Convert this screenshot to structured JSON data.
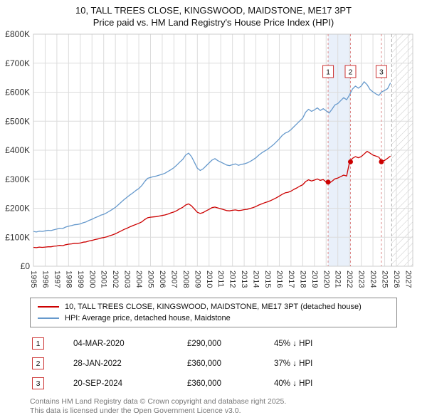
{
  "chart_data": {
    "type": "line",
    "title": "10, TALL TREES CLOSE, KINGSWOOD, MAIDSTONE, ME17 3PT",
    "subtitle": "Price paid vs. HM Land Registry's House Price Index (HPI)",
    "ylim": [
      0,
      800
    ],
    "y_unit": "K GBP",
    "y_ticks": [
      "£0",
      "£100K",
      "£200K",
      "£300K",
      "£400K",
      "£500K",
      "£600K",
      "£700K",
      "£800K"
    ],
    "x_axis": {
      "min": 1995,
      "max": 2027.4
    },
    "x_ticks": [
      1995,
      1996,
      1997,
      1998,
      1999,
      2000,
      2001,
      2002,
      2003,
      2004,
      2005,
      2006,
      2007,
      2008,
      2009,
      2010,
      2011,
      2012,
      2013,
      2014,
      2015,
      2016,
      2017,
      2018,
      2019,
      2020,
      2021,
      2022,
      2023,
      2024,
      2025,
      2026,
      2027
    ],
    "grid": true,
    "legend_position": "bottom",
    "series": [
      {
        "name": "10, TALL TREES CLOSE, KINGSWOOD, MAIDSTONE, ME17 3PT (detached house)",
        "color": "#cc0000",
        "x0": 1995,
        "dx": 0.25,
        "values": [
          65,
          64,
          66,
          65,
          66,
          67,
          67,
          69,
          70,
          72,
          71,
          74,
          76,
          77,
          79,
          79,
          80,
          83,
          84,
          87,
          89,
          92,
          94,
          97,
          99,
          101,
          105,
          108,
          112,
          117,
          122,
          127,
          131,
          136,
          140,
          144,
          148,
          153,
          161,
          167,
          169,
          170,
          171,
          173,
          175,
          177,
          180,
          184,
          187,
          192,
          198,
          203,
          211,
          215,
          208,
          197,
          186,
          182,
          185,
          191,
          196,
          202,
          204,
          201,
          198,
          195,
          192,
          191,
          193,
          194,
          192,
          193,
          195,
          196,
          199,
          202,
          206,
          211,
          215,
          219,
          222,
          226,
          231,
          236,
          242,
          248,
          253,
          255,
          259,
          265,
          270,
          276,
          281,
          292,
          298,
          294,
          297,
          301,
          296,
          299,
          290,
          286,
          293,
          301,
          304,
          309,
          314,
          311,
          360,
          372,
          378,
          374,
          378,
          387,
          396,
          390,
          383,
          380,
          376,
          362,
          365,
          372,
          380
        ]
      },
      {
        "name": "HPI: Average price, detached house, Maidstone",
        "color": "#6699cc",
        "x0": 1995,
        "dx": 0.25,
        "values": [
          120,
          118,
          121,
          120,
          122,
          124,
          123,
          126,
          128,
          131,
          130,
          135,
          138,
          140,
          143,
          144,
          146,
          150,
          153,
          158,
          162,
          167,
          171,
          176,
          179,
          184,
          190,
          196,
          203,
          212,
          221,
          230,
          238,
          246,
          253,
          261,
          268,
          278,
          292,
          303,
          306,
          309,
          311,
          314,
          317,
          321,
          327,
          333,
          340,
          349,
          359,
          368,
          383,
          390,
          378,
          358,
          338,
          330,
          336,
          346,
          356,
          366,
          371,
          364,
          359,
          354,
          349,
          347,
          350,
          353,
          348,
          351,
          353,
          356,
          361,
          367,
          374,
          383,
          391,
          397,
          403,
          411,
          419,
          429,
          439,
          451,
          459,
          463,
          471,
          481,
          491,
          501,
          511,
          531,
          541,
          534,
          539,
          546,
          537,
          543,
          536,
          528,
          541,
          556,
          561,
          571,
          581,
          574,
          591,
          611,
          621,
          614,
          621,
          636,
          626,
          609,
          601,
          594,
          589,
          601,
          606,
          612,
          632
        ]
      }
    ],
    "sales": [
      {
        "n": "1",
        "x": 2020.17,
        "y": 290,
        "date": "04-MAR-2020",
        "price": "£290,000",
        "vs_hpi": "45% ↓ HPI"
      },
      {
        "n": "2",
        "x": 2022.08,
        "y": 360,
        "date": "28-JAN-2022",
        "price": "£360,000",
        "vs_hpi": "37% ↓ HPI"
      },
      {
        "n": "3",
        "x": 2024.72,
        "y": 360,
        "date": "20-SEP-2024",
        "price": "£360,000",
        "vs_hpi": "40% ↓ HPI"
      }
    ],
    "shade": {
      "from": 2020.17,
      "to": 2022.08
    },
    "future_from": 2025.6,
    "marker_label_y": 670,
    "colors": {
      "grid": "#dcdcdc",
      "border": "#cccccc",
      "sale_line": "#dd8888",
      "shade": "#e9f0fa",
      "hatch": "#c8c8c8",
      "marker_border": "#cc3333",
      "marker_text": "#111111",
      "tick_text": "#333333"
    }
  },
  "footer": {
    "line1": "Contains HM Land Registry data © Crown copyright and database right 2025.",
    "line2": "This data is licensed under the Open Government Licence v3.0."
  }
}
